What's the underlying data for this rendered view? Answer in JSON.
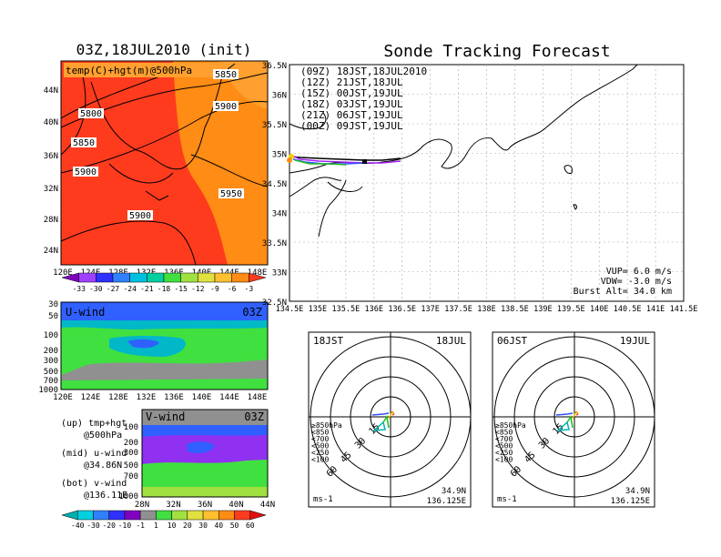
{
  "left_top": {
    "title": "03Z,18JUL2010 (init)",
    "var_label": "temp(C)+hgt(m)@500hPa",
    "contour_labels": [
      "5850",
      "5800",
      "5900",
      "5850",
      "5900",
      "5950",
      "5900"
    ],
    "lat_ticks": [
      "44N",
      "40N",
      "36N",
      "32N",
      "28N",
      "24N"
    ],
    "lon_ticks": [
      "120E",
      "124E",
      "128E",
      "132E",
      "136E",
      "140E",
      "144E",
      "148E"
    ],
    "colorbar_labels": [
      "-33",
      "-30",
      "-27",
      "-24",
      "-21",
      "-18",
      "-15",
      "-12",
      "-9",
      "-6",
      "-3"
    ],
    "colors": {
      "red": "#ff3b1e",
      "orange": "#ff8c14",
      "lightorange": "#ffa030"
    }
  },
  "u_panel": {
    "label": "U-wind",
    "time": "03Z",
    "p_ticks": [
      "30",
      "50",
      "100",
      "200",
      "300",
      "500",
      "700",
      "1000"
    ],
    "lon_ticks": [
      "120E",
      "124E",
      "128E",
      "132E",
      "136E",
      "140E",
      "144E",
      "148E"
    ]
  },
  "v_panel": {
    "label": "V-wind",
    "time": "03Z",
    "p_ticks": [
      "100",
      "200",
      "300",
      "500",
      "700",
      "1000"
    ],
    "lat_ticks": [
      "28N",
      "32N",
      "36N",
      "40N",
      "44N"
    ]
  },
  "notes": [
    {
      "a": "(up) tmp+hgt",
      "b": "@500hPa"
    },
    {
      "a": "(mid) u-wind",
      "b": "@34.86N"
    },
    {
      "a": "(bot) v-wind",
      "b": "@136.11E"
    }
  ],
  "wind_colorbar_labels": [
    "-40",
    "-30",
    "-20",
    "-10",
    "-1",
    "1",
    "10",
    "20",
    "30",
    "40",
    "50",
    "60"
  ],
  "tracking": {
    "title": "Sonde Tracking Forecast",
    "legend": [
      {
        "text": "(09Z)  18JST,18JUL2010",
        "color": "#000000"
      },
      {
        "text": "(12Z)  21JST,18JUL",
        "color": "#a020f0"
      },
      {
        "text": "(15Z)  00JST,19JUL",
        "color": "#3050ff"
      },
      {
        "text": "(18Z)  03JST,19JUL",
        "color": "#20c020"
      },
      {
        "text": "(21Z)  06JST,19JUL",
        "color": "#f0d000"
      },
      {
        "text": "(00Z)  09JST,19JUL",
        "color": "#ff8c00"
      }
    ],
    "lat_ticks": [
      "36.5N",
      "36N",
      "35.5N",
      "35N",
      "34.5N",
      "34N",
      "33.5N",
      "33N",
      "32.5N"
    ],
    "lon_ticks": [
      "134.5E",
      "135E",
      "135.5E",
      "136E",
      "136.5E",
      "137E",
      "137.5E",
      "138E",
      "138.5E",
      "139E",
      "139.5E",
      "140E",
      "140.5E",
      "141E",
      "141.5E"
    ],
    "params": [
      "VUP= 6.0 m/s",
      "VDW= -3.0 m/s",
      "Burst Alt= 34.0 km"
    ]
  },
  "hodo_left": {
    "jst": "18JST",
    "date": "18JUL",
    "levels": [
      "≥850hPa",
      "<850",
      "<700",
      "<500",
      "<250",
      "<100"
    ],
    "level_colors": [
      "#ff3030",
      "#ff8c00",
      "#e0c000",
      "#20c020",
      "#00b0b0",
      "#3050ff"
    ],
    "rings": [
      "15",
      "30",
      "45",
      "60"
    ],
    "unit": "ms-1",
    "lat": "34.9N",
    "lon": "136.125E"
  },
  "hodo_right": {
    "jst": "06JST",
    "date": "19JUL",
    "levels": [
      "≥850hPa",
      "<850",
      "<700",
      "<500",
      "<250",
      "<100"
    ],
    "level_colors": [
      "#ff3030",
      "#ff8c00",
      "#e0c000",
      "#20c020",
      "#00b0b0",
      "#3050ff"
    ],
    "rings": [
      "15",
      "30",
      "45",
      "60"
    ],
    "unit": "ms-1",
    "lat": "34.9N",
    "lon": "136.125E"
  }
}
